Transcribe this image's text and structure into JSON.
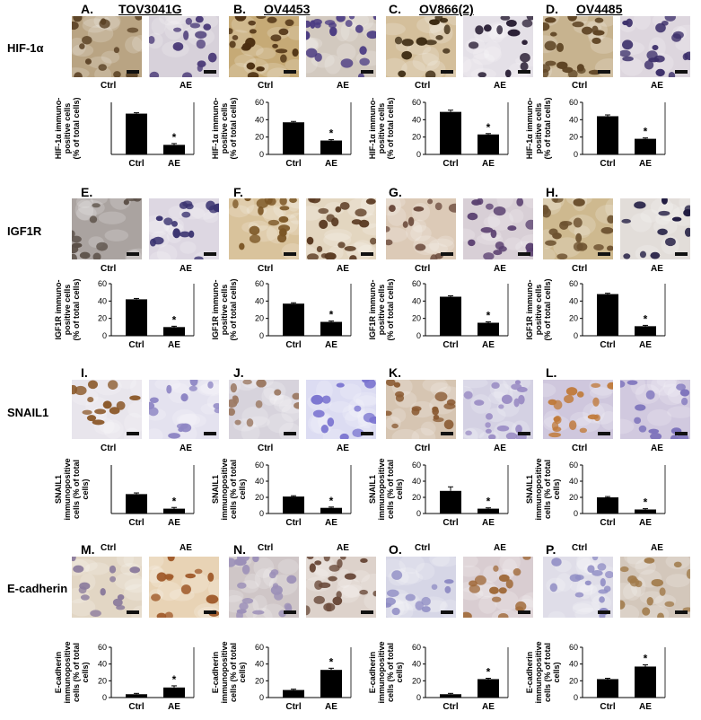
{
  "columns": [
    {
      "panel_letters": [
        "A.",
        "E.",
        "I.",
        "M."
      ],
      "cell_line": "TOV3041G"
    },
    {
      "panel_letters": [
        "B.",
        "F.",
        "J.",
        "N."
      ],
      "cell_line": "OV4453"
    },
    {
      "panel_letters": [
        "C.",
        "G.",
        "K.",
        "O."
      ],
      "cell_line": "OV866(2)"
    },
    {
      "panel_letters": [
        "D.",
        "H.",
        "L.",
        "P."
      ],
      "cell_line": "OV4485"
    }
  ],
  "rows": [
    {
      "marker": "HIF-1α",
      "image_labels": [
        "Ctrl",
        "AE"
      ]
    },
    {
      "marker": "IGF1R",
      "image_labels": [
        "Ctrl",
        "AE"
      ]
    },
    {
      "marker": "SNAIL1",
      "image_labels": [
        "Ctrl",
        "AE"
      ]
    },
    {
      "marker": "E-cadherin",
      "image_labels": [
        "Ctrl",
        "AE"
      ]
    }
  ],
  "chart_data": [
    {
      "panel": "A.",
      "type": "bar",
      "categories": [
        "Ctrl",
        "AE"
      ],
      "values": [
        47,
        11
      ],
      "errors": [
        1,
        1.5
      ],
      "significant": [
        false,
        true
      ],
      "ylim": [
        0,
        60
      ],
      "yticks": [
        0,
        20,
        40,
        60
      ],
      "ylabel": [
        "HIF-1α immuno-",
        "positive cells",
        "(% of total cells)"
      ],
      "ticks_visible": false
    },
    {
      "panel": "B.",
      "type": "bar",
      "categories": [
        "Ctrl",
        "AE"
      ],
      "values": [
        37,
        16
      ],
      "errors": [
        1,
        1
      ],
      "significant": [
        false,
        true
      ],
      "ylim": [
        0,
        60
      ],
      "yticks": [
        0,
        20,
        40,
        60
      ],
      "ylabel": [
        "HIF-1α immuno-",
        "positive cells",
        "(% of total cells)"
      ],
      "ticks_visible": true
    },
    {
      "panel": "C.",
      "type": "bar",
      "categories": [
        "Ctrl",
        "AE"
      ],
      "values": [
        49,
        23
      ],
      "errors": [
        2,
        1
      ],
      "significant": [
        false,
        true
      ],
      "ylim": [
        0,
        60
      ],
      "yticks": [
        0,
        20,
        40,
        60
      ],
      "ylabel": [
        "HIF-1α immuno-",
        "positive cells",
        "(% of total cells)"
      ],
      "ticks_visible": true
    },
    {
      "panel": "D.",
      "type": "bar",
      "categories": [
        "Ctrl",
        "AE"
      ],
      "values": [
        44,
        18
      ],
      "errors": [
        1.5,
        1
      ],
      "significant": [
        false,
        true
      ],
      "ylim": [
        0,
        60
      ],
      "yticks": [
        0,
        20,
        40,
        60
      ],
      "ylabel": [
        "HIF-1α immuno-",
        "positive cells",
        "(% of total cells)"
      ],
      "ticks_visible": true
    },
    {
      "panel": "E.",
      "type": "bar",
      "categories": [
        "Ctrl",
        "AE"
      ],
      "values": [
        42,
        10
      ],
      "errors": [
        1,
        1
      ],
      "significant": [
        false,
        true
      ],
      "ylim": [
        0,
        60
      ],
      "yticks": [
        0,
        20,
        40,
        60
      ],
      "ylabel": [
        "IGF1R immuno-",
        "positive cells",
        "(% of total cells)"
      ],
      "ticks_visible": true
    },
    {
      "panel": "F.",
      "type": "bar",
      "categories": [
        "Ctrl",
        "AE"
      ],
      "values": [
        37,
        16
      ],
      "errors": [
        1,
        1
      ],
      "significant": [
        false,
        true
      ],
      "ylim": [
        0,
        60
      ],
      "yticks": [
        0,
        20,
        40,
        60
      ],
      "ylabel": [
        "IGF1R immuno-",
        "positive cells",
        "(% of total cells)"
      ],
      "ticks_visible": true
    },
    {
      "panel": "G.",
      "type": "bar",
      "categories": [
        "Ctrl",
        "AE"
      ],
      "values": [
        45,
        15
      ],
      "errors": [
        1,
        1
      ],
      "significant": [
        false,
        true
      ],
      "ylim": [
        0,
        60
      ],
      "yticks": [
        0,
        20,
        40,
        60
      ],
      "ylabel": [
        "IGF1R immuno-",
        "positive cells",
        "(% of total cells)"
      ],
      "ticks_visible": true
    },
    {
      "panel": "H.",
      "type": "bar",
      "categories": [
        "Ctrl",
        "AE"
      ],
      "values": [
        48,
        11
      ],
      "errors": [
        1,
        1
      ],
      "significant": [
        false,
        true
      ],
      "ylim": [
        0,
        60
      ],
      "yticks": [
        0,
        20,
        40,
        60
      ],
      "ylabel": [
        "IGF1R immuno-",
        "positive cells",
        "(% of total cells)"
      ],
      "ticks_visible": true
    },
    {
      "panel": "I.",
      "type": "bar",
      "categories": [
        "Ctrl",
        "AE"
      ],
      "values": [
        16,
        4
      ],
      "errors": [
        1,
        1
      ],
      "significant": [
        false,
        true
      ],
      "ylim": [
        0,
        40
      ],
      "yticks": [
        0,
        20,
        40
      ],
      "ylabel": [
        "SNAIL1",
        "immunopositive",
        "cells (% of total",
        "cells)"
      ],
      "ticks_visible": false
    },
    {
      "panel": "J.",
      "type": "bar",
      "categories": [
        "Ctrl",
        "AE"
      ],
      "values": [
        21,
        7
      ],
      "errors": [
        1,
        1
      ],
      "significant": [
        false,
        true
      ],
      "ylim": [
        0,
        60
      ],
      "yticks": [
        0,
        20,
        40,
        60
      ],
      "ylabel": [
        "SNAIL1",
        "immunopositive",
        "cells (% of total",
        "cells)"
      ],
      "ticks_visible": true
    },
    {
      "panel": "K.",
      "type": "bar",
      "categories": [
        "Ctrl",
        "AE"
      ],
      "values": [
        28,
        6
      ],
      "errors": [
        5,
        1
      ],
      "significant": [
        false,
        true
      ],
      "ylim": [
        0,
        60
      ],
      "yticks": [
        0,
        20,
        40,
        60
      ],
      "ylabel": [
        "SNAIL1",
        "immunopositive",
        "cells (% of total",
        "cells)"
      ],
      "ticks_visible": true
    },
    {
      "panel": "L.",
      "type": "bar",
      "categories": [
        "Ctrl",
        "AE"
      ],
      "values": [
        20,
        5
      ],
      "errors": [
        1,
        1
      ],
      "significant": [
        false,
        true
      ],
      "ylim": [
        0,
        60
      ],
      "yticks": [
        0,
        20,
        40,
        60
      ],
      "ylabel": [
        "SNAIL1",
        "immunopositive",
        "cells (% of total",
        "cells)"
      ],
      "ticks_visible": true
    },
    {
      "panel": "M.",
      "type": "bar",
      "categories": [
        "Ctrl",
        "AE"
      ],
      "values": [
        4,
        12
      ],
      "errors": [
        1,
        2
      ],
      "significant": [
        false,
        true
      ],
      "ylim": [
        0,
        60
      ],
      "yticks": [
        0,
        20,
        40,
        60
      ],
      "ylabel": [
        "E-cadherin",
        "immunopositive",
        "cells (% of total",
        "cells)"
      ],
      "ticks_visible": true
    },
    {
      "panel": "N.",
      "type": "bar",
      "categories": [
        "Ctrl",
        "AE"
      ],
      "values": [
        9,
        33
      ],
      "errors": [
        1,
        2
      ],
      "significant": [
        false,
        true
      ],
      "ylim": [
        0,
        60
      ],
      "yticks": [
        0,
        20,
        40,
        60
      ],
      "ylabel": [
        "E-cadherin",
        "immunopositive",
        "cells (% of total",
        "cells)"
      ],
      "ticks_visible": true
    },
    {
      "panel": "O.",
      "type": "bar",
      "categories": [
        "Ctrl",
        "AE"
      ],
      "values": [
        4,
        22
      ],
      "errors": [
        1,
        1
      ],
      "significant": [
        false,
        true
      ],
      "ylim": [
        0,
        60
      ],
      "yticks": [
        0,
        20,
        40,
        60
      ],
      "ylabel": [
        "E-cadherin",
        "immunopositive",
        "cells (% of total",
        "cells)"
      ],
      "ticks_visible": true
    },
    {
      "panel": "P.",
      "type": "bar",
      "categories": [
        "Ctrl",
        "AE"
      ],
      "values": [
        22,
        37
      ],
      "errors": [
        1,
        2
      ],
      "significant": [
        false,
        true
      ],
      "ylim": [
        0,
        60
      ],
      "yticks": [
        0,
        20,
        40,
        60
      ],
      "ylabel": [
        "E-cadherin",
        "immunopositive",
        "cells (% of total",
        "cells)"
      ],
      "ticks_visible": true
    }
  ]
}
